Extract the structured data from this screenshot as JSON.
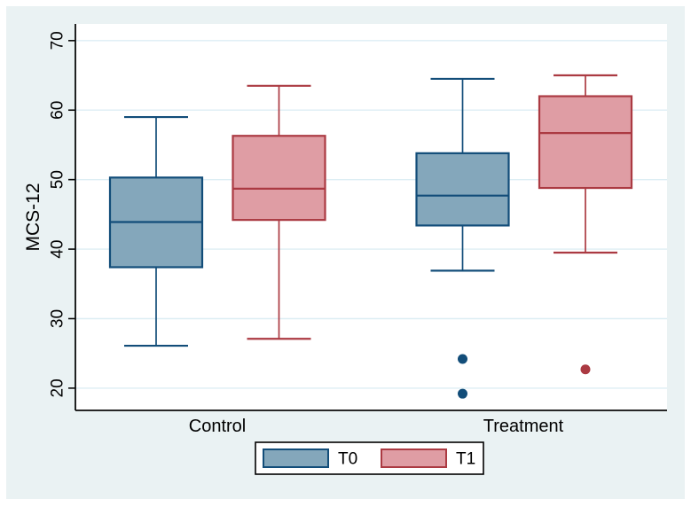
{
  "chart_data": {
    "type": "box",
    "title": "",
    "ylabel": "MCS-12",
    "xlabel": "",
    "yticks": [
      20,
      30,
      40,
      50,
      60,
      70
    ],
    "ylim": [
      16.8,
      72.4
    ],
    "grid": true,
    "groups": [
      "Control",
      "Treatment"
    ],
    "series": [
      {
        "name": "T0",
        "fill": "#84a7bb",
        "stroke": "#124d79",
        "boxes": [
          {
            "group": "Control",
            "low": 26.1,
            "q1": 37.4,
            "median": 43.9,
            "q3": 50.3,
            "high": 59.0,
            "outliers": []
          },
          {
            "group": "Treatment",
            "low": 36.9,
            "q1": 43.4,
            "median": 47.7,
            "q3": 53.8,
            "high": 64.5,
            "outliers": [
              24.2,
              19.2
            ]
          }
        ]
      },
      {
        "name": "T1",
        "fill": "#df9da4",
        "stroke": "#ab3a42",
        "boxes": [
          {
            "group": "Control",
            "low": 27.1,
            "q1": 44.2,
            "median": 48.7,
            "q3": 56.3,
            "high": 63.5,
            "outliers": []
          },
          {
            "group": "Treatment",
            "low": 39.5,
            "q1": 48.8,
            "median": 56.7,
            "q3": 62.0,
            "high": 65.0,
            "outliers": [
              22.7
            ]
          }
        ]
      }
    ],
    "legend": {
      "entries": [
        "T0",
        "T1"
      ],
      "position": "bottom"
    }
  },
  "colors": {
    "canvas_bg": "#eaf2f3",
    "plot_bg": "#ffffff",
    "grid": "#ddeef4",
    "axis": "#0a0a0a",
    "text": "#000000",
    "legend_bg": "#ffffff",
    "legend_border": "#000000"
  }
}
